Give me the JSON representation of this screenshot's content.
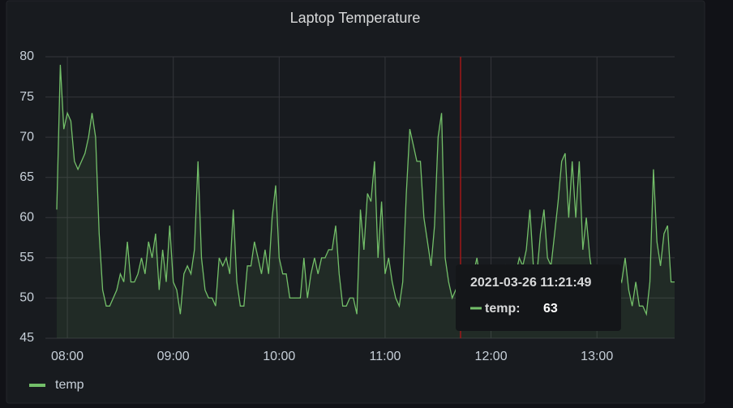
{
  "chart_data": {
    "type": "line",
    "title": "Laptop Temperature",
    "x": [
      "07:54",
      "07:56",
      "07:58",
      "08:00",
      "08:02",
      "08:04",
      "08:06",
      "08:08",
      "08:10",
      "08:12",
      "08:14",
      "08:16",
      "08:18",
      "08:20",
      "08:22",
      "08:24",
      "08:26",
      "08:28",
      "08:30",
      "08:32",
      "08:34",
      "08:36",
      "08:38",
      "08:40",
      "08:42",
      "08:44",
      "08:46",
      "08:48",
      "08:50",
      "08:52",
      "08:54",
      "08:56",
      "08:58",
      "09:00",
      "09:02",
      "09:04",
      "09:06",
      "09:08",
      "09:10",
      "09:12",
      "09:14",
      "09:16",
      "09:18",
      "09:20",
      "09:22",
      "09:24",
      "09:26",
      "09:28",
      "09:30",
      "09:32",
      "09:34",
      "09:36",
      "09:38",
      "09:40",
      "09:42",
      "09:44",
      "09:46",
      "09:48",
      "09:50",
      "09:52",
      "09:54",
      "09:56",
      "09:58",
      "10:00",
      "10:02",
      "10:04",
      "10:06",
      "10:08",
      "10:10",
      "10:12",
      "10:14",
      "10:16",
      "10:18",
      "10:20",
      "10:22",
      "10:24",
      "10:26",
      "10:28",
      "10:30",
      "10:32",
      "10:34",
      "10:36",
      "10:38",
      "10:40",
      "10:42",
      "10:44",
      "10:46",
      "10:48",
      "10:50",
      "10:52",
      "10:54",
      "10:56",
      "10:58",
      "11:00",
      "11:02",
      "11:04",
      "11:06",
      "11:08",
      "11:10",
      "11:12",
      "11:14",
      "11:16",
      "11:18",
      "11:20",
      "11:22",
      "11:24",
      "11:26",
      "11:28",
      "11:30",
      "11:32",
      "11:34",
      "11:36",
      "11:38",
      "11:40",
      "11:42",
      "11:44",
      "11:46",
      "11:48",
      "11:50",
      "11:52",
      "11:54",
      "11:56",
      "11:58",
      "12:00",
      "12:02",
      "12:04",
      "12:06",
      "12:08",
      "12:10",
      "12:12",
      "12:14",
      "12:16",
      "12:18",
      "12:20",
      "12:22",
      "12:24",
      "12:26",
      "12:28",
      "12:30",
      "12:32",
      "12:34",
      "12:36",
      "12:38",
      "12:40",
      "12:42",
      "12:44",
      "12:46",
      "12:48",
      "12:50",
      "12:52",
      "12:54",
      "12:56",
      "12:58",
      "13:00",
      "13:02",
      "13:04",
      "13:06",
      "13:08",
      "13:10",
      "13:12",
      "13:14",
      "13:16",
      "13:18",
      "13:20",
      "13:22",
      "13:24",
      "13:26",
      "13:28",
      "13:30",
      "13:32",
      "13:34",
      "13:36",
      "13:38",
      "13:40",
      "13:42",
      "13:44"
    ],
    "series": [
      {
        "name": "temp",
        "color": "#73bf69",
        "values": [
          61,
          79,
          71,
          73,
          72,
          67,
          66,
          67,
          68,
          70,
          73,
          70,
          58,
          51,
          49,
          49,
          50,
          51,
          53,
          52,
          57,
          52,
          52,
          53,
          55,
          53,
          57,
          55,
          58,
          51,
          56,
          52,
          59,
          52,
          51,
          48,
          53,
          54,
          53,
          56,
          67,
          55,
          51,
          50,
          50,
          49,
          55,
          54,
          55,
          53,
          61,
          52,
          49,
          49,
          54,
          54,
          57,
          55,
          53,
          56,
          53,
          60,
          64,
          55,
          53,
          53,
          50,
          50,
          50,
          50,
          55,
          50,
          53,
          55,
          53,
          55,
          55,
          56,
          56,
          59,
          53,
          49,
          49,
          50,
          50,
          48,
          61,
          56,
          63,
          62,
          67,
          55,
          62,
          53,
          55,
          52,
          50,
          49,
          52,
          63,
          71,
          69,
          67,
          67,
          60,
          57,
          54,
          59,
          70,
          73,
          55,
          52,
          50,
          51,
          52,
          50,
          51,
          51,
          53,
          55,
          52,
          51,
          53,
          52,
          51,
          51,
          53,
          54,
          52,
          53,
          53,
          55,
          54,
          56,
          61,
          54,
          53,
          58,
          61,
          55,
          54,
          58,
          62,
          67,
          68,
          60,
          67,
          60,
          67,
          56,
          60,
          55,
          52,
          50,
          50,
          50,
          51,
          49,
          50,
          53,
          52,
          55,
          51,
          49,
          52,
          49,
          49,
          48,
          52,
          66,
          57,
          54,
          58,
          59,
          52,
          52
        ]
      }
    ],
    "xlim": [
      "07:54",
      "13:44"
    ],
    "xticks": [
      "08:00",
      "09:00",
      "10:00",
      "11:00",
      "12:00",
      "13:00"
    ],
    "ylim": [
      45,
      80
    ],
    "yticks": [
      45,
      50,
      55,
      60,
      65,
      70,
      75,
      80
    ],
    "grid": true,
    "legend": "bottom-left",
    "tooltip": {
      "time": "2021-03-26 11:21:49",
      "series": "temp:",
      "value": 63
    }
  }
}
